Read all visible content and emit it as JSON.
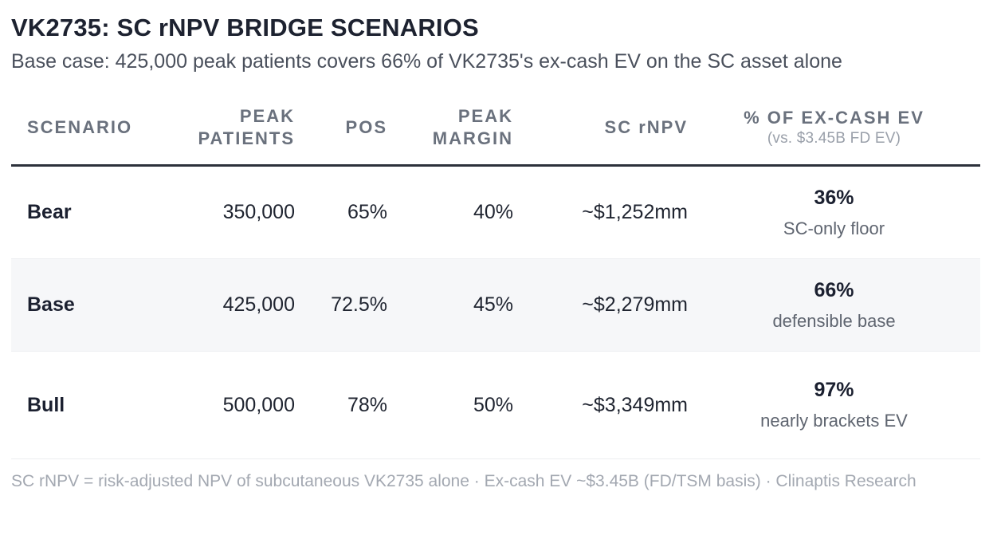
{
  "header": {
    "title": "VK2735: SC rNPV BRIDGE SCENARIOS",
    "subtitle": "Base case: 425,000 peak patients covers 66% of VK2735's ex-cash EV on the SC asset alone"
  },
  "table": {
    "columns": {
      "scenario": "SCENARIO",
      "peak_patients_line1": "PEAK",
      "peak_patients_line2": "PATIENTS",
      "pos": "POS",
      "peak_margin_line1": "PEAK",
      "peak_margin_line2": "MARGIN",
      "sc_rnpv": "SC rNPV",
      "pct_ex_cash": "% OF EX-CASH EV",
      "pct_ex_cash_sub": "(vs. $3.45B FD EV)"
    },
    "rows": [
      {
        "scenario": "Bear",
        "peak_patients": "350,000",
        "pos": "65%",
        "peak_margin": "40%",
        "sc_rnpv": "~$1,252mm",
        "pct_value": "36%",
        "pct_note": "SC-only floor"
      },
      {
        "scenario": "Base",
        "peak_patients": "425,000",
        "pos": "72.5%",
        "peak_margin": "45%",
        "sc_rnpv": "~$2,279mm",
        "pct_value": "66%",
        "pct_note": "defensible base"
      },
      {
        "scenario": "Bull",
        "peak_patients": "500,000",
        "pos": "78%",
        "peak_margin": "50%",
        "sc_rnpv": "~$3,349mm",
        "pct_value": "97%",
        "pct_note": "nearly brackets EV"
      }
    ]
  },
  "footnote": "SC rNPV = risk-adjusted NPV of subcutaneous VK2735 alone · Ex-cash EV ~$3.45B (FD/TSM basis) · Clinaptis Research"
}
